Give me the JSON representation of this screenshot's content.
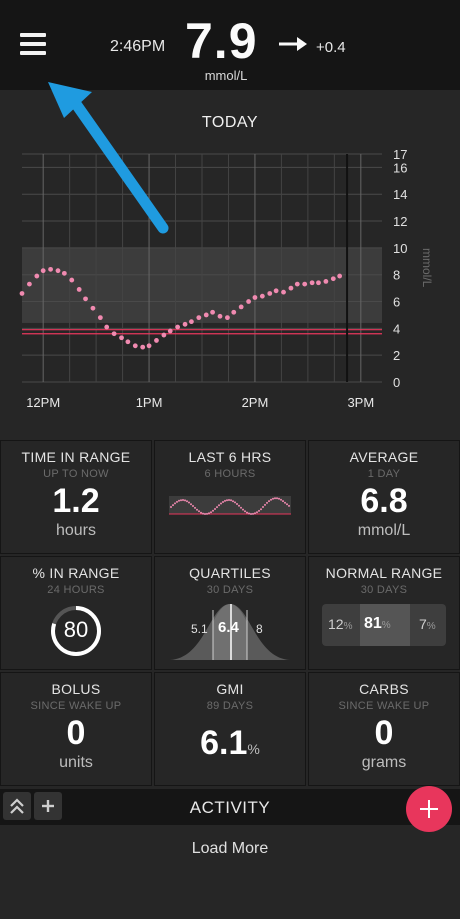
{
  "header": {
    "time": "2:46PM",
    "glucose": "7.9",
    "unit": "mmol/L",
    "trend_icon": "arrow-right-icon",
    "delta": "+0.4"
  },
  "chart": {
    "title": "TODAY"
  },
  "chart_data": {
    "type": "scatter",
    "title": "TODAY",
    "ylabel": "mmol/L",
    "xlabel": "",
    "x_ticks": [
      "12PM",
      "1PM",
      "2PM",
      "3PM"
    ],
    "y_ticks": [
      0,
      2,
      4,
      6,
      8,
      10,
      12,
      14,
      16,
      17
    ],
    "ylim": [
      0,
      17
    ],
    "xlim_hours": [
      11.8,
      15.2
    ],
    "target_range": [
      4.4,
      10
    ],
    "low_lines": [
      3.6,
      3.9
    ],
    "current_time_hour": 14.87,
    "series": [
      {
        "x": [
          11.8,
          11.87,
          11.94,
          12.0,
          12.07,
          12.14,
          12.2,
          12.27,
          12.34,
          12.4,
          12.47,
          12.54,
          12.6,
          12.67,
          12.74,
          12.8,
          12.87,
          12.94,
          13.0,
          13.07,
          13.14,
          13.2,
          13.27,
          13.34,
          13.4,
          13.47,
          13.54,
          13.6,
          13.67,
          13.74,
          13.8,
          13.87,
          13.94,
          14.0,
          14.07,
          14.14,
          14.2,
          14.27,
          14.34,
          14.4,
          14.47,
          14.54,
          14.6,
          14.67,
          14.74,
          14.8
        ],
        "y": [
          6.6,
          7.3,
          7.9,
          8.3,
          8.4,
          8.3,
          8.1,
          7.6,
          6.9,
          6.2,
          5.5,
          4.8,
          4.1,
          3.6,
          3.3,
          3.0,
          2.7,
          2.6,
          2.7,
          3.1,
          3.5,
          3.8,
          4.1,
          4.3,
          4.5,
          4.8,
          5.0,
          5.2,
          4.9,
          4.8,
          5.2,
          5.6,
          6.0,
          6.3,
          6.4,
          6.6,
          6.8,
          6.7,
          7.0,
          7.3,
          7.3,
          7.4,
          7.4,
          7.5,
          7.7,
          7.9
        ]
      }
    ]
  },
  "tiles": {
    "time_in_range": {
      "title": "TIME IN RANGE",
      "sub": "UP TO NOW",
      "value": "1.2",
      "unit": "hours"
    },
    "last_6hrs": {
      "title": "LAST 6 HRS",
      "sub": "6 HOURS"
    },
    "average": {
      "title": "AVERAGE",
      "sub": "1 DAY",
      "value": "6.8",
      "unit": "mmol/L"
    },
    "pct_in_range": {
      "title": "% IN RANGE",
      "sub": "24 HOURS",
      "value": "80",
      "fraction": 0.8
    },
    "quartiles": {
      "title": "QUARTILES",
      "sub": "30 DAYS",
      "low": "5.1",
      "median": "6.4",
      "high": "8"
    },
    "normal_range": {
      "title": "NORMAL RANGE",
      "sub": "30 DAYS",
      "below": "12",
      "in": "81",
      "above": "7",
      "pct": "%"
    },
    "bolus": {
      "title": "BOLUS",
      "sub": "SINCE WAKE UP",
      "value": "0",
      "unit": "units"
    },
    "gmi": {
      "title": "GMI",
      "sub": "89 DAYS",
      "value": "6.1",
      "pct": "%"
    },
    "carbs": {
      "title": "CARBS",
      "sub": "SINCE WAKE UP",
      "value": "0",
      "unit": "grams"
    }
  },
  "activity": {
    "label": "ACTIVITY",
    "collapse_icon": "chevrons-up-icon",
    "add_tab_icon": "plus-icon",
    "fab_icon": "plus-icon"
  },
  "load_more": "Load More",
  "colors": {
    "accent": "#e8365c",
    "data_points": "#f08ab0",
    "target_band": "#3c3c3c",
    "annotation_arrow": "#1f9be0"
  }
}
